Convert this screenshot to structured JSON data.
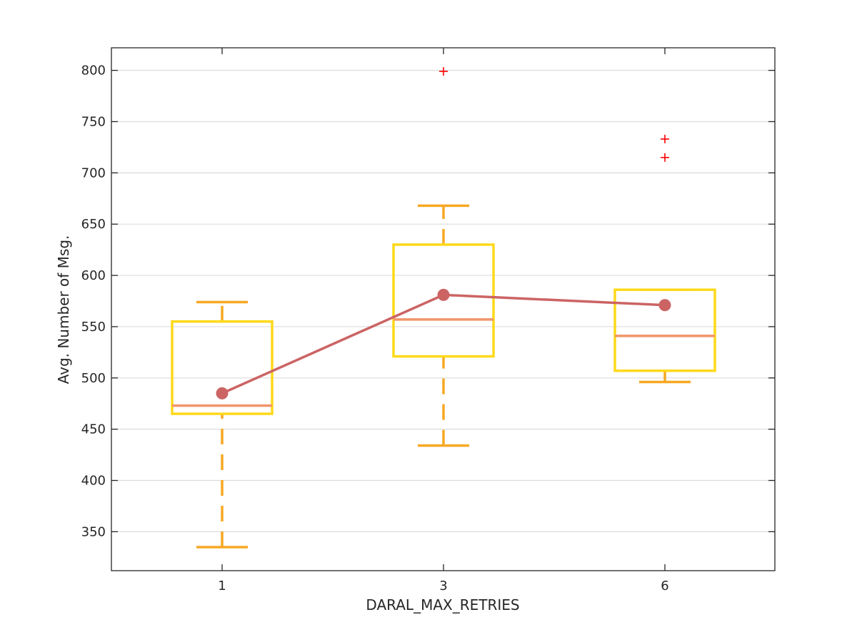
{
  "chart_data": {
    "type": "box",
    "xlabel": "DARAL_MAX_RETRIES",
    "ylabel": "Avg. Number of Msg.",
    "ylim": [
      312,
      822
    ],
    "yticks": [
      350,
      400,
      450,
      500,
      550,
      600,
      650,
      700,
      750,
      800
    ],
    "grid": "horizontal",
    "categories": [
      "1",
      "3",
      "6"
    ],
    "boxes": [
      {
        "category": "1",
        "whisker_low": 335,
        "q1": 465,
        "median": 473,
        "q3": 555,
        "whisker_high": 574,
        "outliers": []
      },
      {
        "category": "3",
        "whisker_low": 434,
        "q1": 521,
        "median": 557,
        "q3": 630,
        "whisker_high": 668,
        "outliers": [
          799
        ]
      },
      {
        "category": "6",
        "whisker_low": 496,
        "q1": 507,
        "median": 541,
        "q3": 586,
        "whisker_high": 586,
        "outliers": [
          733,
          715
        ]
      }
    ],
    "mean_line": {
      "values": [
        485,
        581,
        571
      ]
    },
    "colors": {
      "box": "#ffd91a",
      "whisker": "#f7a823",
      "median": "#f0956a",
      "mean": "#cc6464",
      "outlier": "#ff0000",
      "grid": "#dcdcdc",
      "axis": "#262626"
    }
  }
}
